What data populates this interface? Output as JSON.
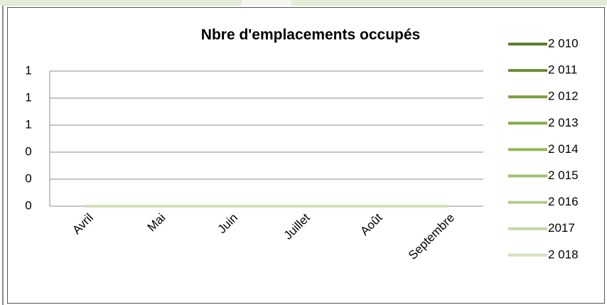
{
  "chart_data": {
    "type": "line",
    "title": "Nbre d'emplacements occupés",
    "categories": [
      "Avril",
      "Mai",
      "Juin",
      "Juillet",
      "Août",
      "Septembre"
    ],
    "series": [
      {
        "name": "2 010",
        "color": "#5b7f2c",
        "values": [
          0,
          0,
          0,
          0,
          0,
          0
        ]
      },
      {
        "name": "2 011",
        "color": "#6a8e34",
        "values": [
          0,
          0,
          0,
          0,
          0,
          0
        ]
      },
      {
        "name": "2 012",
        "color": "#76a03c",
        "values": [
          0,
          0,
          0,
          0,
          0,
          0
        ]
      },
      {
        "name": "2 013",
        "color": "#82ac45",
        "values": [
          0,
          0,
          0,
          0,
          0,
          0
        ]
      },
      {
        "name": "2 014",
        "color": "#8fb853",
        "values": [
          0,
          0,
          0,
          0,
          0,
          0
        ]
      },
      {
        "name": "2 015",
        "color": "#a1c16e",
        "values": [
          0,
          0,
          0,
          0,
          0,
          0
        ]
      },
      {
        "name": "2 016",
        "color": "#b3cc8c",
        "values": [
          0,
          0,
          0,
          0,
          0,
          0
        ]
      },
      {
        "name": "2017",
        "color": "#c4d6a5",
        "values": [
          0,
          0,
          0,
          0,
          0,
          0
        ]
      },
      {
        "name": "2 018",
        "color": "#d3e1bb",
        "values": [
          0,
          0,
          0,
          0,
          0,
          0
        ]
      }
    ],
    "ylim": [
      0,
      1
    ],
    "yticks": [
      0,
      {
        "value": 0.2,
        "label": "0"
      },
      {
        "value": 0.4,
        "label": "0"
      },
      {
        "value": 0.6,
        "label": "1"
      },
      {
        "value": 0.8,
        "label": "1"
      },
      1
    ],
    "grid": true,
    "legend": "right"
  }
}
